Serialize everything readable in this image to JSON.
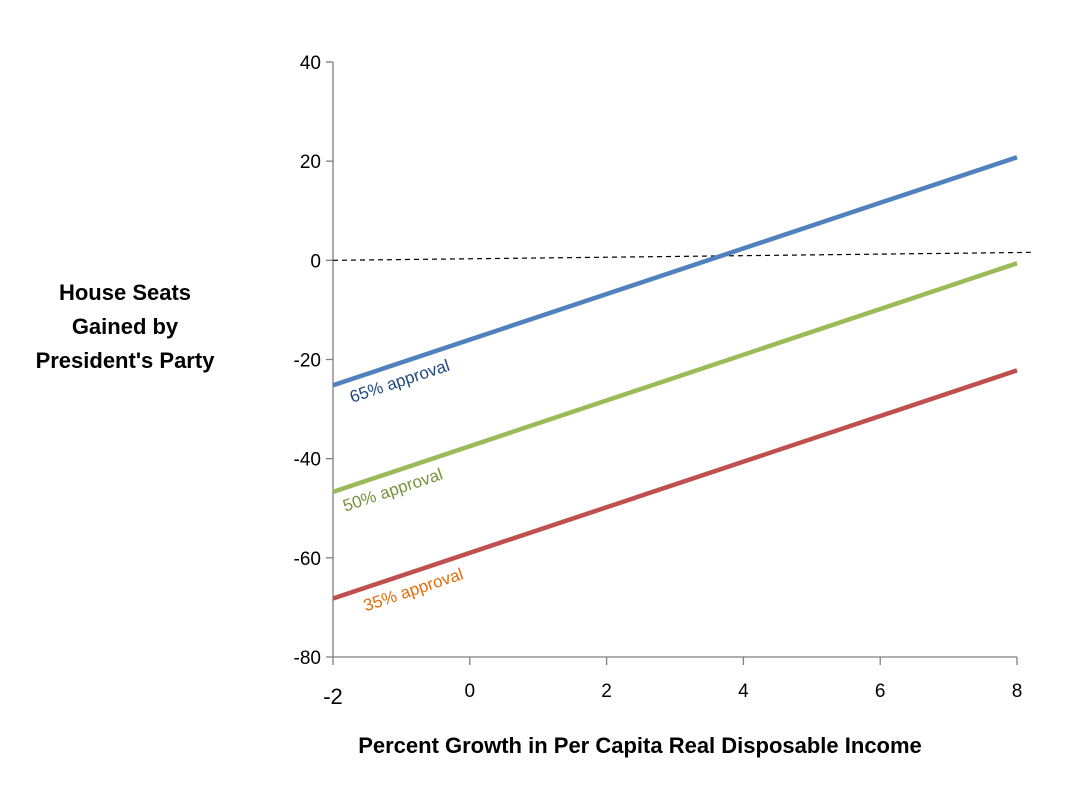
{
  "chart_data": {
    "type": "line",
    "title": "",
    "xlabel": "Percent Growth in Per Capita Real Disposable Income",
    "ylabel_lines": [
      "House Seats",
      "Gained by",
      "President's Party"
    ],
    "xlim": [
      -2,
      8
    ],
    "ylim": [
      -80,
      40
    ],
    "x_ticks": [
      -2,
      0,
      2,
      4,
      6,
      8
    ],
    "y_ticks": [
      40,
      20,
      0,
      -20,
      -40,
      -60,
      -80
    ],
    "grid": false,
    "series": [
      {
        "name": "65% approval",
        "x": [
          -2,
          8
        ],
        "y": [
          -25.2,
          20.8
        ],
        "color": "#4f81bd",
        "label_color": "#1f497d",
        "label_at_x": -1.0
      },
      {
        "name": "50% approval",
        "x": [
          -2,
          8
        ],
        "y": [
          -46.7,
          -0.6
        ],
        "color": "#9bbb59",
        "label_color": "#77933c",
        "label_at_x": -1.1
      },
      {
        "name": "35% approval",
        "x": [
          -2,
          8
        ],
        "y": [
          -68.2,
          -22.2
        ],
        "color": "#c0504d",
        "label_color": "#e46c0a",
        "label_at_x": -0.8
      }
    ],
    "reference_line": {
      "name": "zero-reference",
      "x": [
        -2,
        8.2
      ],
      "y": [
        0,
        1.6
      ],
      "color": "#000000",
      "dashed": true
    }
  }
}
